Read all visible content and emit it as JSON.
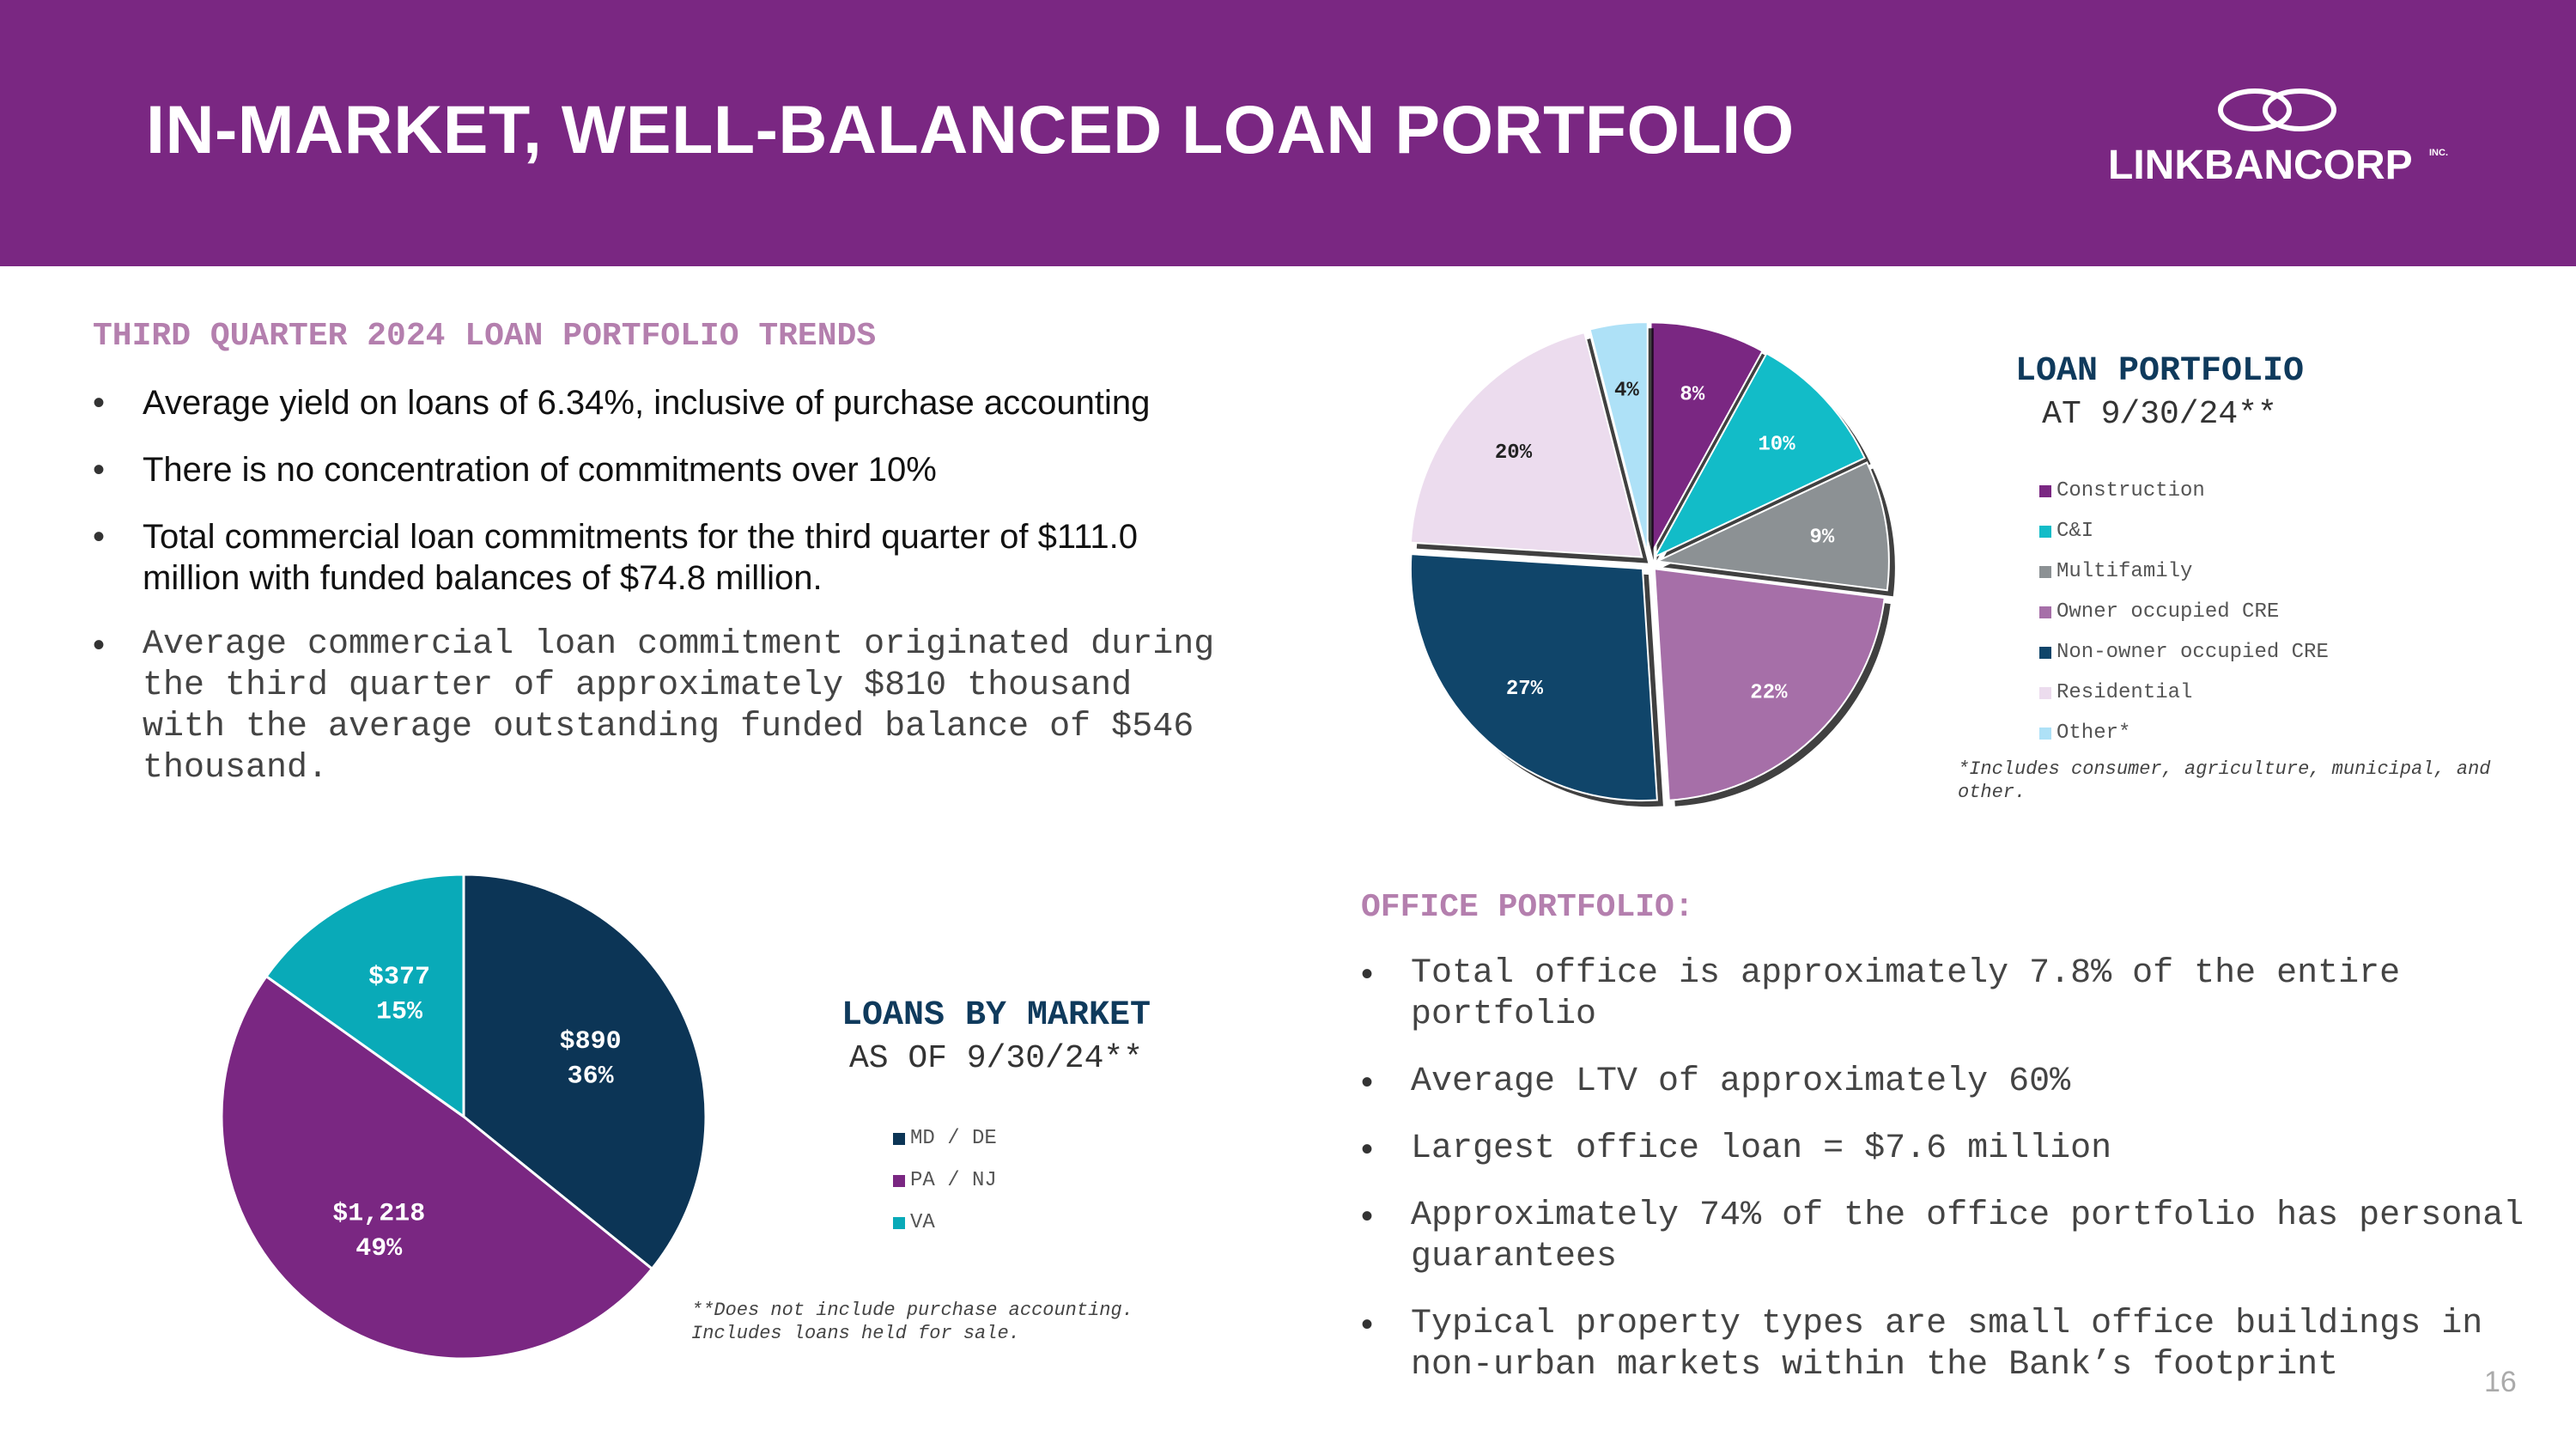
{
  "header": {
    "title": "IN-MARKET, WELL-BALANCED LOAN PORTFOLIO",
    "logo_text": "LINKBANCORP",
    "logo_inc": "INC."
  },
  "trends": {
    "title": "THIRD QUARTER 2024 LOAN PORTFOLIO TRENDS",
    "bullets": [
      "Average yield on loans of 6.34%, inclusive of purchase accounting",
      "There is no concentration of commitments over 10%",
      "Total commercial loan commitments for the third quarter of $111.0 million with funded balances of $74.8 million.",
      "Average commercial loan commitment originated during the third quarter of approximately $810 thousand with the average outstanding funded balance of $546 thousand."
    ]
  },
  "portfolio_chart": {
    "title_line1": "LOAN PORTFOLIO",
    "title_line2": "AT 9/30/24**",
    "note": "*Includes consumer, agriculture, municipal, and other."
  },
  "market_chart": {
    "title_line1": "LOANS BY MARKET",
    "title_line2": "AS OF 9/30/24**",
    "note": "**Does not include purchase accounting. Includes loans held for sale."
  },
  "office": {
    "title": "OFFICE PORTFOLIO:",
    "bullets": [
      "Total office is approximately 7.8% of the entire portfolio",
      "Average LTV of approximately 60%",
      "Largest office loan = $7.6 million",
      "Approximately 74% of the office portfolio has personal guarantees",
      "Typical property types are small office buildings in non-urban markets within the Bank’s footprint"
    ]
  },
  "page_number": "16",
  "colors": {
    "header_bg": "#7a2782",
    "section_title": "#b47fae",
    "chart_title": "#0f3a5c"
  },
  "chart_data": [
    {
      "type": "pie",
      "title": "LOAN PORTFOLIO",
      "subtitle": "AT 9/30/24**",
      "categories": [
        "Construction",
        "C&I",
        "Multifamily",
        "Owner occupied CRE",
        "Non-owner occupied CRE",
        "Residential",
        "Other*"
      ],
      "values": [
        8,
        10,
        9,
        22,
        27,
        20,
        4
      ],
      "labels": [
        "8%",
        "10%",
        "9%",
        "22%",
        "27%",
        "20%",
        "4%"
      ],
      "colors": [
        "#7a2782",
        "#12bcc8",
        "#8c9194",
        "#a66fa8",
        "#10456a",
        "#ecdcee",
        "#aee1f7"
      ],
      "legend": "right"
    },
    {
      "type": "pie",
      "title": "LOANS BY MARKET",
      "subtitle": "AS OF 9/30/24**",
      "categories": [
        "MD / DE",
        "PA / NJ",
        "VA"
      ],
      "values": [
        890,
        1218,
        377
      ],
      "labels": [
        "$890\n36%",
        "$1,218\n49%",
        "$377\n15%"
      ],
      "colors": [
        "#0c3556",
        "#7a2782",
        "#09aab8"
      ],
      "legend": "right"
    }
  ]
}
